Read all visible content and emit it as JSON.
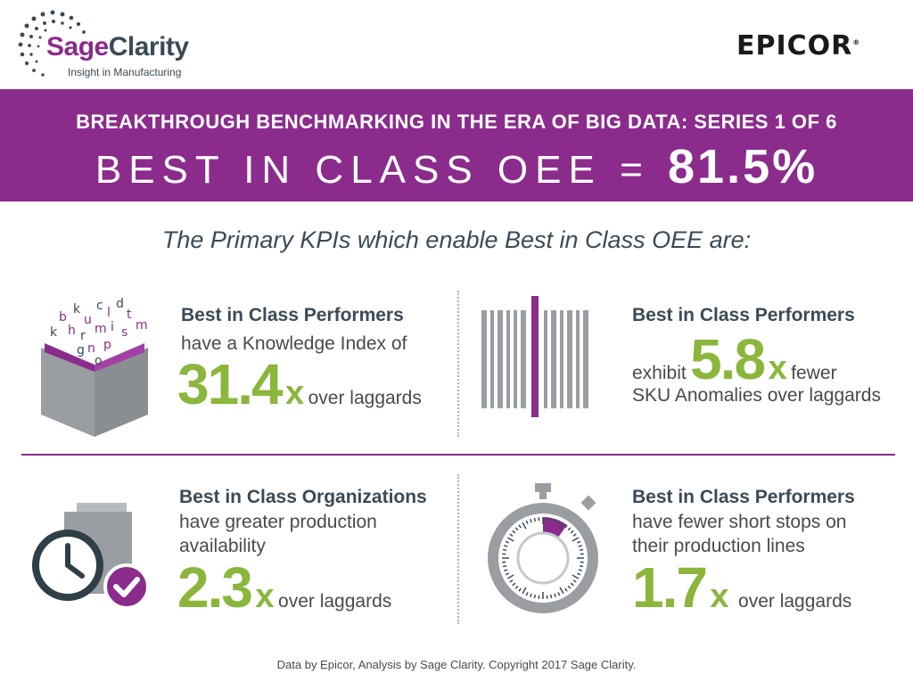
{
  "header": {
    "logo_part1": "Sage",
    "logo_part2": "Clarity",
    "logo_tagline": "Insight in Manufacturing",
    "partner_logo": "EPICOR"
  },
  "banner": {
    "title": "BREAKTHROUGH BENCHMARKING IN THE ERA OF BIG DATA: SERIES 1 OF 6",
    "main_label": "BEST IN CLASS OEE =",
    "main_value": "81.5%"
  },
  "subtitle": "The Primary KPIs which enable Best in Class OEE are:",
  "cards": [
    {
      "icon": "book-icon",
      "title": "Best in Class Performers",
      "line1": "have a Knowledge Index of",
      "value": "31.4",
      "x": "x",
      "suffix": "over laggards"
    },
    {
      "icon": "barcode-icon",
      "title": "Best in Class Performers",
      "prefix": "exhibit",
      "value": "5.8",
      "x": "x",
      "suffix": "fewer",
      "line2": "SKU Anomalies over laggards"
    },
    {
      "icon": "clock-check-icon",
      "title": "Best in Class Organizations",
      "line1": "have greater production",
      "line2": "availability",
      "value": "2.3",
      "x": "x",
      "suffix": "over laggards"
    },
    {
      "icon": "stopwatch-icon",
      "title": "Best in Class Performers",
      "line1": "have fewer short stops on",
      "line2": "their production lines",
      "value": "1.7",
      "x": "x",
      "suffix": "over laggards"
    }
  ],
  "footer": "Data by Epicor, Analysis by Sage Clarity.  Copyright 2017 Sage Clarity.",
  "colors": {
    "purple": "#8b2b8c",
    "green": "#8bb63c",
    "slate": "#3b4a57",
    "gray": "#9a9ea2"
  }
}
